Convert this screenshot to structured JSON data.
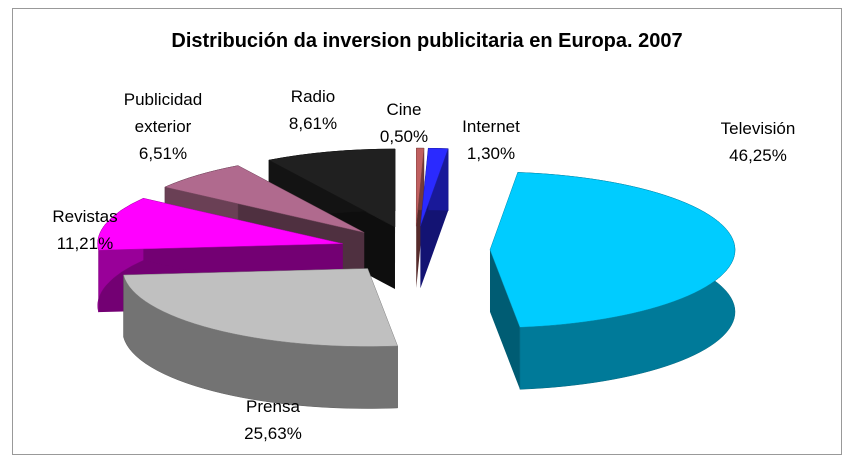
{
  "chart_data": {
    "type": "pie3d",
    "title": "Distribución da inversion publicitaria en Europa. 2007",
    "categories": [
      "Televisión",
      "Prensa",
      "Revistas",
      "Publicidad exterior",
      "Radio",
      "Cine",
      "Internet"
    ],
    "values": [
      46.25,
      25.63,
      11.21,
      6.51,
      8.61,
      0.5,
      1.3
    ],
    "value_labels": [
      "46,25%",
      "25,63%",
      "11,21%",
      "6,51%",
      "8,61%",
      "0,50%",
      "1,30%"
    ],
    "colors": [
      "#00ccff",
      "#c0c0c0",
      "#ff00ff",
      "#b06a8e",
      "#202020",
      "#c06060",
      "#2a2aff"
    ]
  }
}
